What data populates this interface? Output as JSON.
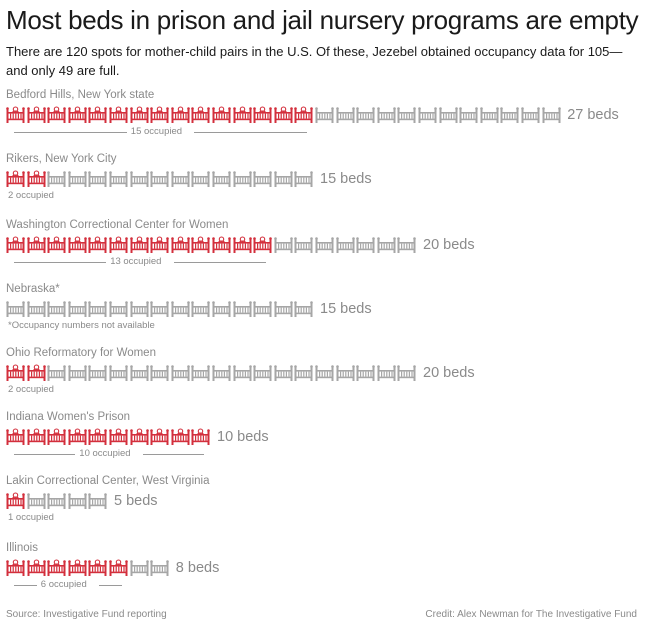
{
  "title": "Most beds in prison and jail nursery programs are empty",
  "subtitle": "There are 120 spots for mother-child pairs in the U.S. Of these, Jezebel obtained occupancy data for 105—and only 49 are full.",
  "source": "Source: Investigative Fund reporting",
  "credit": "Credit:  Alex Newman for The Investigative Fund",
  "colors": {
    "occupied": "#d32f3c",
    "empty": "#a6a6a6",
    "text_muted": "#8a8a8a"
  },
  "chart_data": {
    "type": "pictogram",
    "unit": "bed",
    "series": [
      "occupied",
      "empty"
    ],
    "facilities": [
      {
        "name": "Bedford Hills, New York state",
        "beds": 27,
        "beds_label": "27 beds",
        "occupied": 15,
        "note": "15 occupied",
        "note_style": "bracket"
      },
      {
        "name": "Rikers, New York City",
        "beds": 15,
        "beds_label": "15 beds",
        "occupied": 2,
        "note": "2 occupied",
        "note_style": "left"
      },
      {
        "name": "Washington Correctional Center for Women",
        "beds": 20,
        "beds_label": "20 beds",
        "occupied": 13,
        "note": "13 occupied",
        "note_style": "bracket"
      },
      {
        "name": "Nebraska*",
        "beds": 15,
        "beds_label": "15 beds",
        "occupied": null,
        "note": "*Occupancy numbers not available",
        "note_style": "left"
      },
      {
        "name": "Ohio Reformatory for Women",
        "beds": 20,
        "beds_label": "20 beds",
        "occupied": 2,
        "note": "2 occupied",
        "note_style": "left"
      },
      {
        "name": "Indiana Women's Prison",
        "beds": 10,
        "beds_label": "10 beds",
        "occupied": 10,
        "note": "10 occupied",
        "note_style": "bracket"
      },
      {
        "name": "Lakin Correctional Center, West Virginia",
        "beds": 5,
        "beds_label": "5 beds",
        "occupied": 1,
        "note": "1 occupied",
        "note_style": "left"
      },
      {
        "name": "Illinois",
        "beds": 8,
        "beds_label": "8 beds",
        "occupied": 6,
        "note": "6 occupied",
        "note_style": "bracket"
      }
    ]
  }
}
